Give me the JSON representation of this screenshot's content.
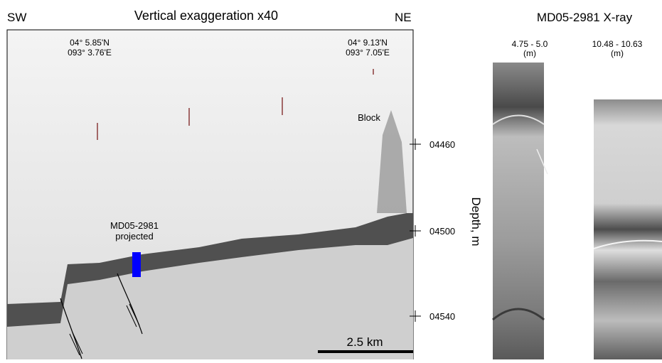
{
  "header": {
    "left": "SW",
    "title": "Vertical exaggeration x40",
    "right": "NE"
  },
  "profile": {
    "start_coords": [
      "04° 5.85'N",
      "093° 3.76'E"
    ],
    "end_coords": [
      "04° 9.13'N",
      "093° 7.05'E"
    ],
    "block_label": "Block",
    "core_label": [
      "MD05-2981",
      "projected"
    ],
    "scale_bar": "2.5 km",
    "depth_ticks": [
      "04460",
      "04500",
      "04540"
    ],
    "depth_label": "Depth, m"
  },
  "xray": {
    "title": "MD05-2981 X-ray",
    "cores": [
      {
        "range": "4.75 - 5.0",
        "unit": "(m)"
      },
      {
        "range": "10.48 - 10.63",
        "unit": "(m)"
      }
    ]
  }
}
